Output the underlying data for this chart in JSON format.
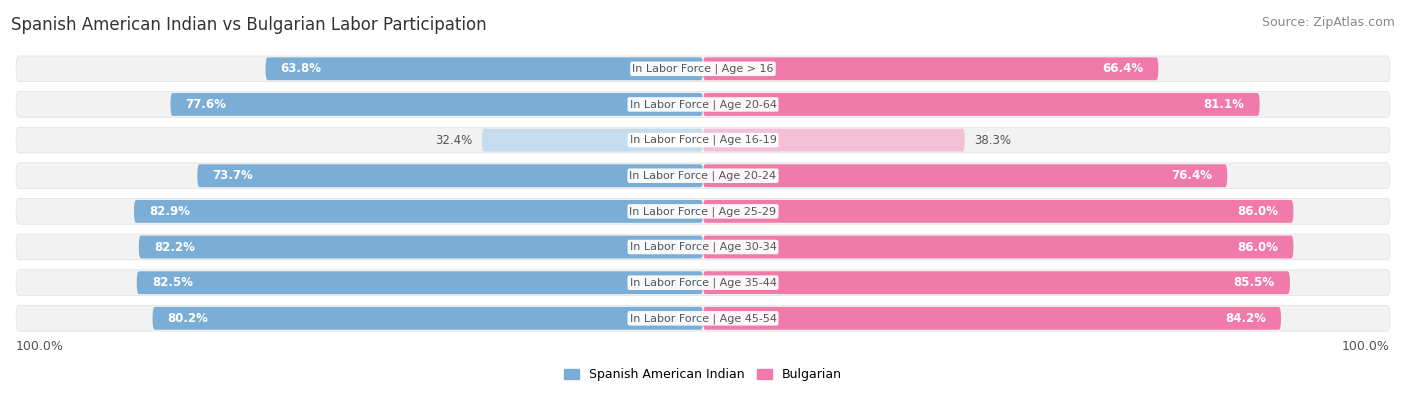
{
  "title": "Spanish American Indian vs Bulgarian Labor Participation",
  "source": "Source: ZipAtlas.com",
  "categories": [
    "In Labor Force | Age > 16",
    "In Labor Force | Age 20-64",
    "In Labor Force | Age 16-19",
    "In Labor Force | Age 20-24",
    "In Labor Force | Age 25-29",
    "In Labor Force | Age 30-34",
    "In Labor Force | Age 35-44",
    "In Labor Force | Age 45-54"
  ],
  "spanish_values": [
    63.8,
    77.6,
    32.4,
    73.7,
    82.9,
    82.2,
    82.5,
    80.2
  ],
  "bulgarian_values": [
    66.4,
    81.1,
    38.3,
    76.4,
    86.0,
    86.0,
    85.5,
    84.2
  ],
  "max_value": 100.0,
  "spanish_color_high": "#7aaed6",
  "spanish_color_low": "#c5dcee",
  "bulgarian_color_high": "#f07aaa",
  "bulgarian_color_low": "#f5c0d5",
  "bg_row_color": "#f2f2f2",
  "bg_row_edge": "#e0e0e0",
  "center_label_color": "#555555",
  "threshold_low": 50,
  "legend_spanish": "Spanish American Indian",
  "legend_bulgarian": "Bulgarian",
  "background_color": "#ffffff",
  "title_fontsize": 12,
  "source_fontsize": 9,
  "bar_label_fontsize": 8.5,
  "category_fontsize": 8,
  "axis_label_fontsize": 9
}
